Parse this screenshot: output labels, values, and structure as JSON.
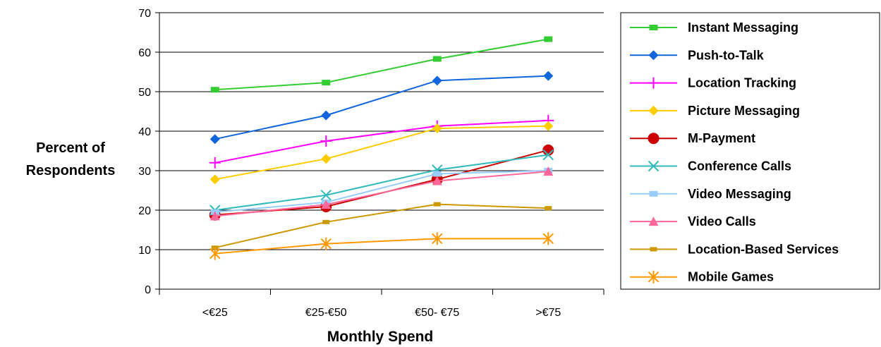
{
  "chart_data": {
    "type": "line",
    "title": "",
    "xlabel": "Monthly Spend",
    "ylabel": "Percent of Respondents",
    "categories": [
      "<€25",
      "€25-€50",
      "€50- €75",
      ">€75"
    ],
    "ylim": [
      0,
      70
    ],
    "yticks": [
      0,
      10,
      20,
      30,
      40,
      50,
      60,
      70
    ],
    "grid": true,
    "legend_position": "right",
    "series": [
      {
        "name": "Instant Messaging",
        "color": "#33cc33",
        "marker": "square",
        "values": [
          50.5,
          52.3,
          58.3,
          63.3
        ]
      },
      {
        "name": "Push-to-Talk",
        "color": "#1166dd",
        "marker": "diamond",
        "values": [
          38,
          44,
          52.8,
          54
        ]
      },
      {
        "name": "Location Tracking",
        "color": "#ff00ff",
        "marker": "plus",
        "values": [
          32,
          37.5,
          41.3,
          42.7
        ]
      },
      {
        "name": "Picture Messaging",
        "color": "#ffcc00",
        "marker": "diamond",
        "values": [
          27.8,
          33,
          40.7,
          41.3
        ]
      },
      {
        "name": "M-Payment",
        "color": "#cc0000",
        "marker": "circle",
        "values": [
          18.8,
          20.9,
          27.8,
          35.2
        ]
      },
      {
        "name": "Conference Calls",
        "color": "#33bbbb",
        "marker": "x",
        "values": [
          20,
          23.8,
          30.2,
          34
        ]
      },
      {
        "name": "Video Messaging",
        "color": "#99ccff",
        "marker": "square",
        "values": [
          19.5,
          22,
          29.2,
          30
        ]
      },
      {
        "name": "Video Calls",
        "color": "#ff6699",
        "marker": "triangle",
        "values": [
          18.5,
          21.4,
          27.4,
          29.8
        ]
      },
      {
        "name": "Location-Based Services",
        "color": "#cc9900",
        "marker": "smallsquare",
        "values": [
          10.5,
          17,
          21.5,
          20.5
        ]
      },
      {
        "name": "Mobile Games",
        "color": "#ff9900",
        "marker": "star",
        "values": [
          9,
          11.5,
          12.8,
          12.8
        ]
      }
    ]
  }
}
